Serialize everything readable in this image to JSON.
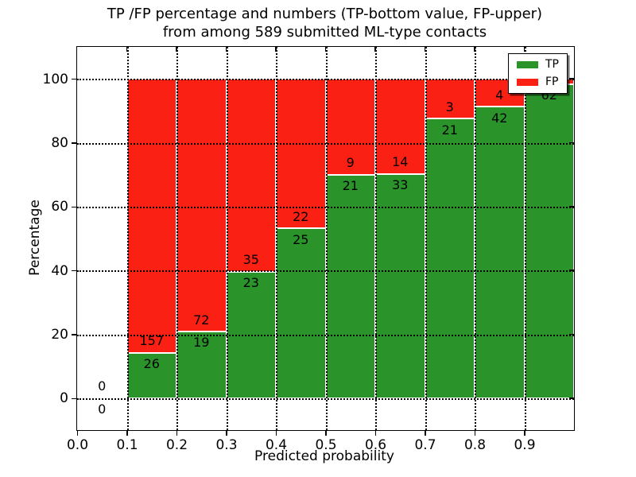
{
  "figure": {
    "title_line1": "TP /FP percentage and numbers (TP-bottom value, FP-upper)",
    "title_line2": "from among 589 submitted ML-type contacts",
    "xlabel": "Predicted probability",
    "ylabel": "Percentage"
  },
  "legend": {
    "position": "upper right",
    "items": [
      {
        "label": "TP",
        "color": "#2a932a"
      },
      {
        "label": "FP",
        "color": "#fb2014"
      }
    ]
  },
  "colors": {
    "tp_green": "#2a932a",
    "fp_red": "#fb2014",
    "bar_edge": "#ffffff",
    "grid": "#000000",
    "background": "#ffffff"
  },
  "chart_data": {
    "type": "bar",
    "stacked": true,
    "normalized_to_percent": 100,
    "title": "TP /FP percentage and numbers (TP-bottom value, FP-upper) from among 589 submitted ML-type contacts",
    "xlabel": "Predicted probability",
    "ylabel": "Percentage",
    "xlim": [
      0.0,
      1.0
    ],
    "ylim": [
      -10,
      110
    ],
    "xticks": [
      0.0,
      0.1,
      0.2,
      0.3,
      0.4,
      0.5,
      0.6,
      0.7,
      0.8,
      0.9
    ],
    "xtick_labels": [
      "0.0",
      "0.1",
      "0.2",
      "0.3",
      "0.4",
      "0.5",
      "0.6",
      "0.7",
      "0.8",
      "0.9"
    ],
    "yticks": [
      0,
      20,
      40,
      60,
      80,
      100
    ],
    "ytick_labels": [
      "0",
      "20",
      "40",
      "60",
      "80",
      "100"
    ],
    "grid": {
      "style": "dotted",
      "color": "#000000"
    },
    "legend_position": "upper right",
    "total_submitted": 589,
    "series_names": [
      "TP",
      "FP"
    ],
    "bins": [
      {
        "x_start": 0.0,
        "x_end": 0.1,
        "tp": 0,
        "fp": 0,
        "tp_pct": null,
        "fp_pct": null
      },
      {
        "x_start": 0.1,
        "x_end": 0.2,
        "tp": 26,
        "fp": 157,
        "tp_pct": 14.21,
        "fp_pct": 85.79
      },
      {
        "x_start": 0.2,
        "x_end": 0.3,
        "tp": 19,
        "fp": 72,
        "tp_pct": 20.88,
        "fp_pct": 79.12
      },
      {
        "x_start": 0.3,
        "x_end": 0.4,
        "tp": 23,
        "fp": 35,
        "tp_pct": 39.66,
        "fp_pct": 60.34
      },
      {
        "x_start": 0.4,
        "x_end": 0.5,
        "tp": 25,
        "fp": 22,
        "tp_pct": 53.19,
        "fp_pct": 46.81
      },
      {
        "x_start": 0.5,
        "x_end": 0.6,
        "tp": 21,
        "fp": 9,
        "tp_pct": 70.0,
        "fp_pct": 30.0
      },
      {
        "x_start": 0.6,
        "x_end": 0.7,
        "tp": 33,
        "fp": 14,
        "tp_pct": 70.21,
        "fp_pct": 29.79
      },
      {
        "x_start": 0.7,
        "x_end": 0.8,
        "tp": 21,
        "fp": 3,
        "tp_pct": 87.5,
        "fp_pct": 12.5
      },
      {
        "x_start": 0.8,
        "x_end": 0.9,
        "tp": 42,
        "fp": 4,
        "tp_pct": 91.3,
        "fp_pct": 8.7
      },
      {
        "x_start": 0.9,
        "x_end": 1.0,
        "tp": 62,
        "fp": 1,
        "tp_pct": 98.41,
        "fp_pct": 1.59
      }
    ]
  }
}
